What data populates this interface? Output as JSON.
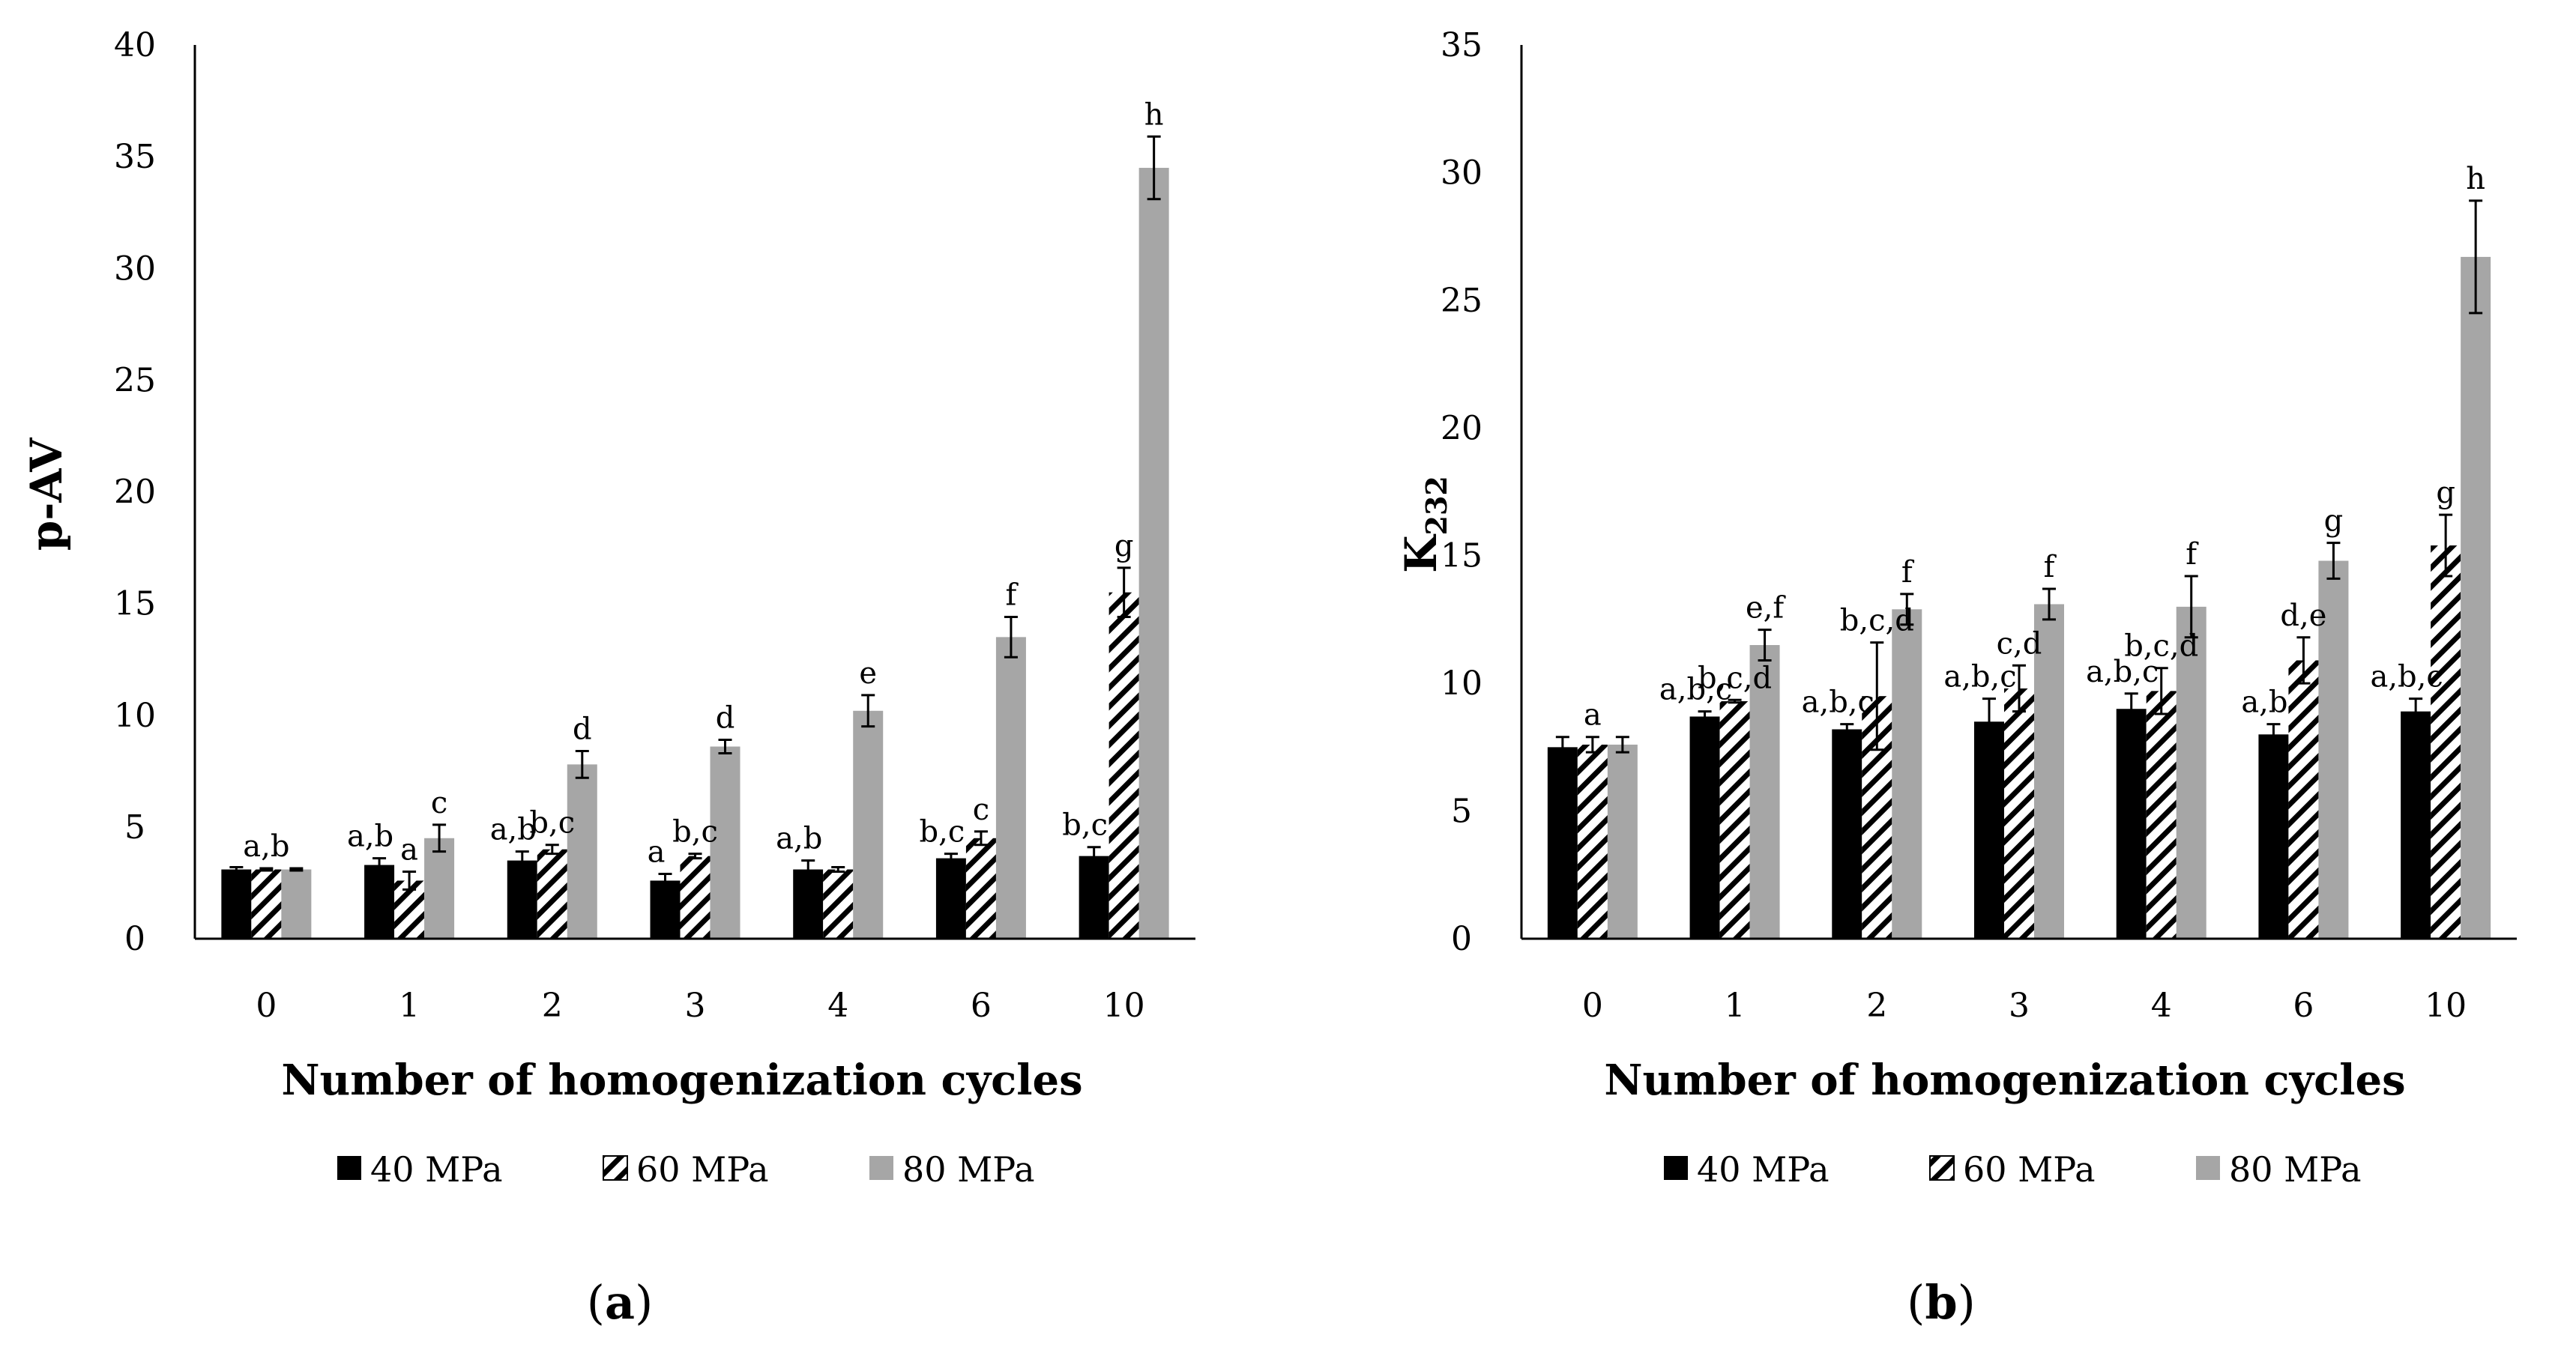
{
  "colors": {
    "p40": "#000000",
    "p60_hatch": "#000000",
    "p80": "#a6a6a6",
    "axis": "#000000"
  },
  "chart_data": [
    {
      "type": "bar",
      "panel_label": "a",
      "categories": [
        "0",
        "1",
        "2",
        "3",
        "4",
        "6",
        "10"
      ],
      "xlabel": "Number of homogenization cycles",
      "ylabel": "p-AV",
      "ylim": [
        0,
        40
      ],
      "yticks": [
        0,
        5,
        10,
        15,
        20,
        25,
        30,
        35,
        40
      ],
      "legend": "bottom",
      "series": [
        {
          "name": "40 MPa",
          "values": [
            3.1,
            3.3,
            3.5,
            2.6,
            3.1,
            3.6,
            3.7
          ],
          "errors": [
            0.1,
            0.3,
            0.4,
            0.3,
            0.4,
            0.2,
            0.4
          ],
          "labels": [
            "",
            "a,b",
            "a,b",
            "a",
            "a,b",
            "b,c",
            "b,c"
          ]
        },
        {
          "name": "60 MPa",
          "values": [
            3.1,
            2.6,
            4.0,
            3.7,
            3.1,
            4.5,
            15.5
          ],
          "errors": [
            0.05,
            0.4,
            0.2,
            0.1,
            0.1,
            0.3,
            1.1
          ],
          "labels": [
            "a,b",
            "a",
            "b,c",
            "b,c",
            "",
            "c",
            "g"
          ]
        },
        {
          "name": "80 MPa",
          "values": [
            3.1,
            4.5,
            7.8,
            8.6,
            10.2,
            13.5,
            34.5
          ],
          "errors": [
            0.05,
            0.6,
            0.6,
            0.3,
            0.7,
            0.9,
            1.4
          ],
          "labels": [
            "",
            "c",
            "d",
            "d",
            "e",
            "f",
            "h"
          ]
        }
      ]
    },
    {
      "type": "bar",
      "panel_label": "b",
      "categories": [
        "0",
        "1",
        "2",
        "3",
        "4",
        "6",
        "10"
      ],
      "xlabel": "Number of homogenization cycles",
      "ylabel": "K",
      "ylabel_sub": "232",
      "ylim": [
        0,
        35
      ],
      "yticks": [
        0,
        5,
        10,
        15,
        20,
        25,
        30,
        35
      ],
      "legend": "bottom",
      "series": [
        {
          "name": "40 MPa",
          "values": [
            7.5,
            8.7,
            8.2,
            8.5,
            9.0,
            8.0,
            8.9
          ],
          "errors": [
            0.4,
            0.2,
            0.2,
            0.9,
            0.6,
            0.4,
            0.5
          ],
          "labels": [
            "",
            "a,b,c",
            "a,b,c",
            "a,b,c",
            "a,b,c",
            "a,b",
            "a,b,c"
          ]
        },
        {
          "name": "60 MPa",
          "values": [
            7.6,
            9.3,
            9.5,
            9.8,
            9.7,
            10.9,
            15.4
          ],
          "errors": [
            0.3,
            0.05,
            2.1,
            0.9,
            0.9,
            0.9,
            1.2
          ],
          "labels": [
            "a",
            "b,c,d",
            "b,c,d",
            "c,d",
            "b,c,d",
            "d,e",
            "g"
          ]
        },
        {
          "name": "80 MPa",
          "values": [
            7.6,
            11.5,
            12.9,
            13.1,
            13.0,
            14.8,
            26.7
          ],
          "errors": [
            0.3,
            0.6,
            0.6,
            0.6,
            1.2,
            0.7,
            2.2
          ],
          "labels": [
            "",
            "e,f",
            "f",
            "f",
            "f",
            "g",
            "h"
          ]
        }
      ]
    }
  ]
}
